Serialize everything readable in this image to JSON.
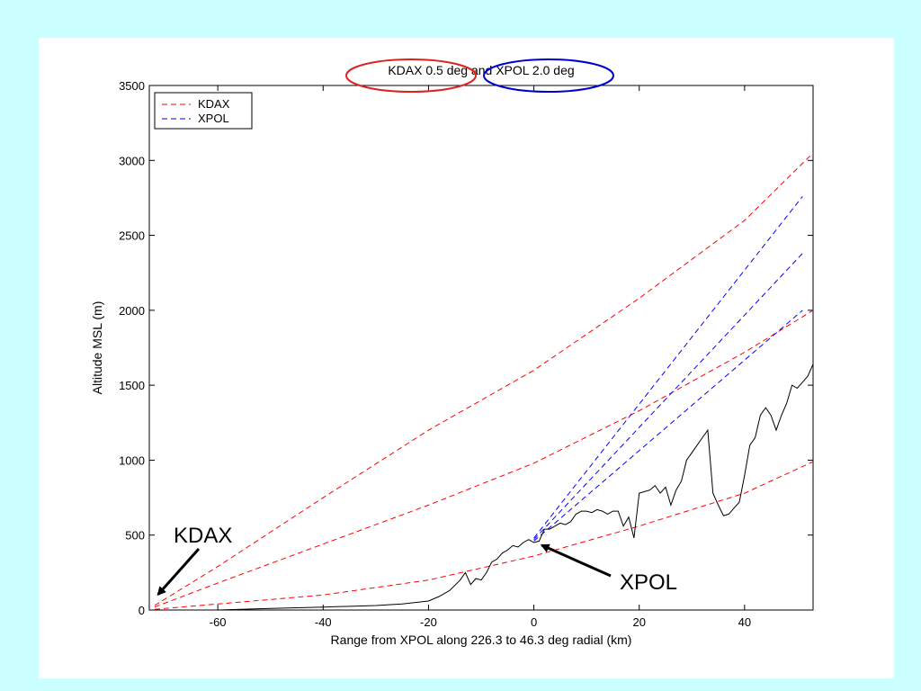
{
  "chart_data": {
    "type": "line",
    "title": "KDAX 0.5 deg  and XPOL 2.0 deg",
    "xlabel": "Range from XPOL along 226.3 to 46.3 deg radial (km)",
    "ylabel": "Altitude MSL (m)",
    "xlim": [
      -73,
      53
    ],
    "ylim": [
      0,
      3500
    ],
    "xticks": [
      -60,
      -40,
      -20,
      0,
      20,
      40
    ],
    "yticks": [
      0,
      500,
      1000,
      1500,
      2000,
      2500,
      3000,
      3500
    ],
    "grid": false,
    "legend": {
      "placement": "top-left",
      "entries": [
        {
          "label": "KDAX",
          "color": "#ff0000",
          "style": "dashed"
        },
        {
          "label": "XPOL",
          "color": "#0000ff",
          "style": "dashed"
        }
      ]
    },
    "series": [
      {
        "name": "KDAX",
        "color": "#ff0000",
        "style": "dashed",
        "beam": "upper",
        "x": [
          -72,
          -60,
          -40,
          -20,
          0,
          20,
          40,
          53
        ],
        "y": [
          30,
          290,
          750,
          1200,
          1600,
          2080,
          2600,
          3050
        ]
      },
      {
        "name": "KDAX",
        "color": "#ff0000",
        "style": "dashed",
        "beam": "center",
        "x": [
          -72,
          -60,
          -40,
          -20,
          0,
          20,
          40,
          53
        ],
        "y": [
          20,
          180,
          440,
          700,
          980,
          1330,
          1720,
          2000
        ]
      },
      {
        "name": "KDAX",
        "color": "#ff0000",
        "style": "dashed",
        "beam": "lower",
        "x": [
          -72,
          -60,
          -40,
          -20,
          0,
          20,
          40,
          53
        ],
        "y": [
          5,
          40,
          100,
          200,
          360,
          560,
          780,
          990
        ]
      },
      {
        "name": "XPOL",
        "color": "#0000ff",
        "style": "dashed",
        "beam": "upper",
        "x": [
          0,
          51
        ],
        "y": [
          480,
          2760
        ]
      },
      {
        "name": "XPOL",
        "color": "#0000ff",
        "style": "dashed",
        "beam": "center",
        "x": [
          0,
          51
        ],
        "y": [
          470,
          2380
        ]
      },
      {
        "name": "XPOL",
        "color": "#0000ff",
        "style": "dashed",
        "beam": "lower",
        "x": [
          0,
          51
        ],
        "y": [
          460,
          2000
        ]
      },
      {
        "name": "",
        "color": "#000000",
        "style": "solid",
        "beam": "terrain",
        "x": [
          -72,
          -60,
          -50,
          -40,
          -30,
          -25,
          -20,
          -18,
          -16,
          -14,
          -13,
          -12,
          -11,
          -10,
          -9,
          -8,
          -7,
          -6,
          -5,
          -4,
          -3,
          -2,
          -1,
          0,
          1,
          2,
          3,
          4,
          5,
          6,
          7,
          8,
          9,
          10,
          11,
          12,
          13,
          14,
          15,
          16,
          17,
          18,
          19,
          20,
          21,
          22,
          23,
          24,
          25,
          26,
          27,
          28,
          29,
          30,
          31,
          32,
          33,
          34,
          35,
          36,
          37,
          38,
          39,
          40,
          41,
          42,
          43,
          44,
          45,
          46,
          47,
          48,
          49,
          50,
          51,
          52,
          53
        ],
        "y": [
          0,
          0,
          10,
          20,
          30,
          40,
          60,
          90,
          130,
          200,
          250,
          170,
          210,
          200,
          250,
          320,
          340,
          380,
          400,
          430,
          420,
          450,
          470,
          450,
          460,
          540,
          540,
          560,
          580,
          570,
          590,
          640,
          660,
          660,
          650,
          670,
          660,
          640,
          660,
          660,
          560,
          620,
          480,
          780,
          790,
          800,
          830,
          780,
          820,
          700,
          800,
          860,
          1000,
          1050,
          1100,
          1150,
          1200,
          780,
          700,
          630,
          640,
          680,
          720,
          900,
          1100,
          1150,
          1300,
          1350,
          1300,
          1200,
          1300,
          1380,
          1500,
          1480,
          1520,
          1560,
          1640
        ]
      }
    ],
    "annotations": [
      {
        "text": "KDAX",
        "points_to": [
          -72,
          80
        ]
      },
      {
        "text": "XPOL",
        "points_to": [
          0.5,
          450
        ]
      }
    ],
    "highlights": [
      {
        "target": "KDAX 0.5 deg",
        "color": "#dd2222"
      },
      {
        "target": "XPOL 2.0 deg",
        "color": "#0000cc"
      }
    ]
  }
}
